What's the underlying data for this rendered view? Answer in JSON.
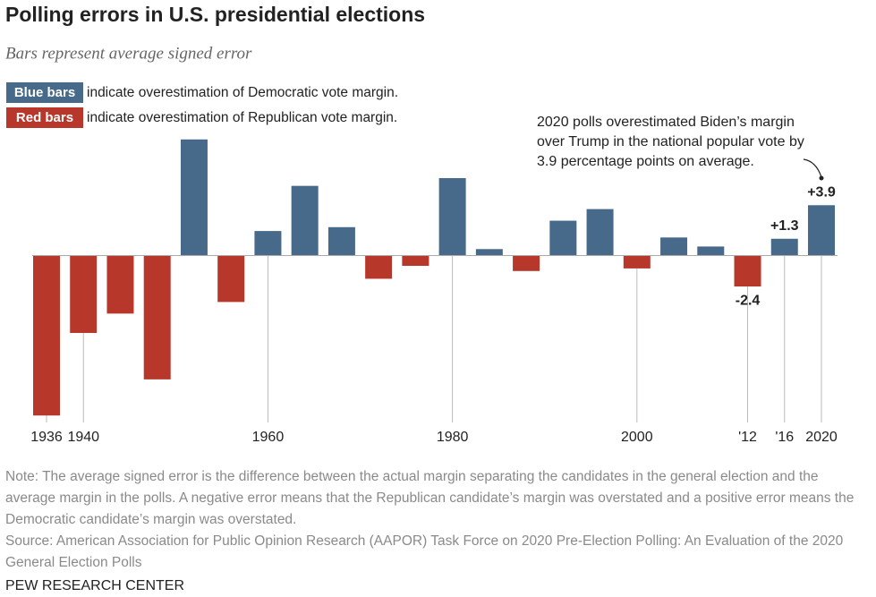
{
  "chart_data": {
    "type": "bar",
    "title": "Polling errors in U.S. presidential elections",
    "subtitle": "Bars represent average signed error",
    "legend": [
      {
        "label": "Blue bars",
        "text": "indicate overestimation of Democratic vote margin.",
        "color": "#47698a"
      },
      {
        "label": "Red bars",
        "text": "indicate overestimation of Republican vote margin.",
        "color": "#b7372b"
      }
    ],
    "annotation": [
      "2020 polls overestimated Biden’s margin",
      "over Trump in the national popular vote by",
      "3.9 percentage points on average."
    ],
    "categories": [
      "1936",
      "1940",
      null,
      null,
      null,
      null,
      "1960",
      null,
      null,
      null,
      null,
      "1980",
      null,
      null,
      null,
      null,
      "2000",
      null,
      null,
      "'12",
      "'16",
      "2020"
    ],
    "values": [
      -12.4,
      -6.0,
      -4.5,
      -9.6,
      9.0,
      -3.6,
      1.9,
      5.4,
      2.2,
      -1.8,
      -0.8,
      6.0,
      0.5,
      -1.2,
      2.7,
      3.6,
      -1.0,
      1.4,
      0.7,
      -2.4,
      1.3,
      3.9
    ],
    "value_labels": [
      null,
      null,
      null,
      null,
      null,
      null,
      null,
      null,
      null,
      null,
      null,
      null,
      null,
      null,
      null,
      null,
      null,
      null,
      null,
      "-2.4",
      "+1.3",
      "+3.9"
    ],
    "ylim": [
      -12.8,
      9.4
    ],
    "note": "Note: The average signed error is the difference between the actual margin separating the candidates in the general election and the average margin in the polls. A negative error means that the Republican candidate’s margin was overstated and a positive error means the Democratic candidate’s margin was overstated.",
    "source": "Source: American Association for Public Opinion Research (AAPOR) Task Force on 2020 Pre-Election Polling: An Evaluation of the 2020 General Election Polls",
    "footer": "PEW RESEARCH CENTER"
  }
}
